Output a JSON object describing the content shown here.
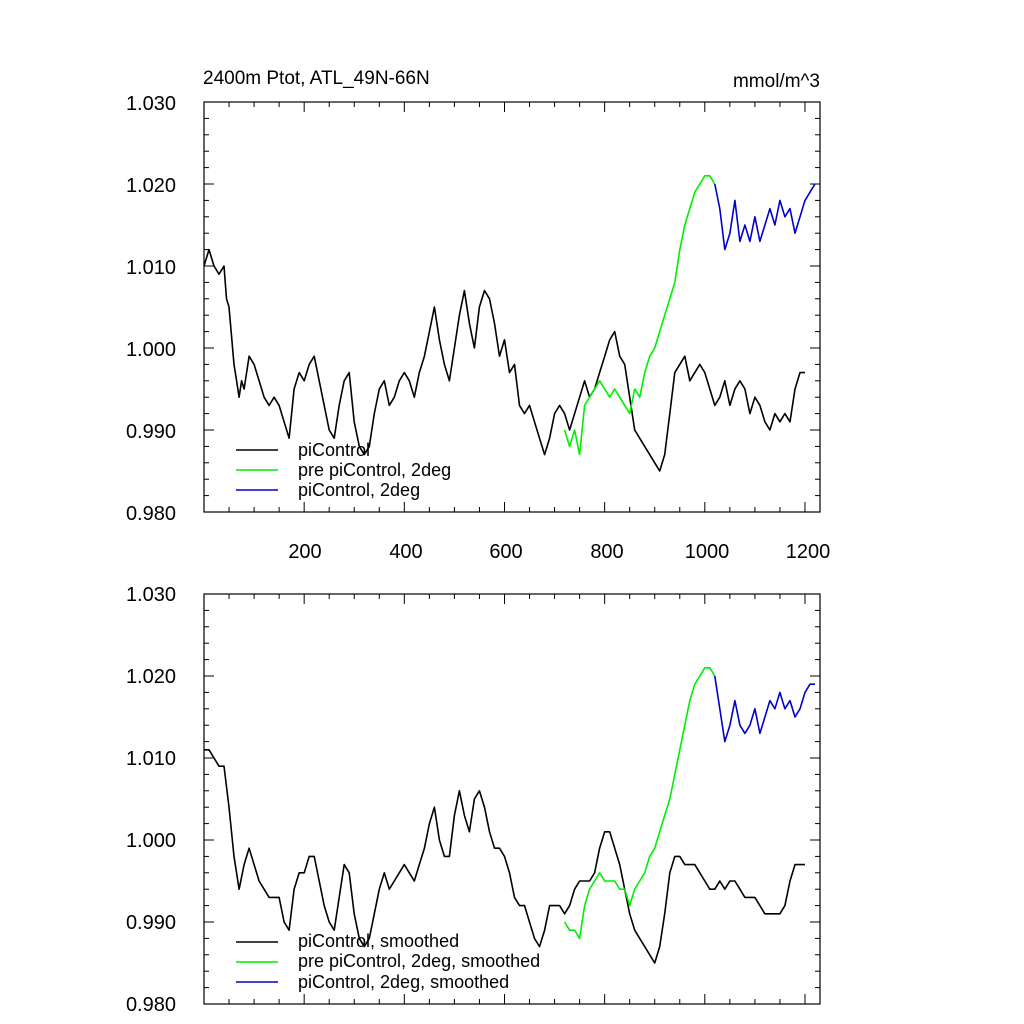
{
  "colors": {
    "piControl": "#000000",
    "pre_2deg": "#00ee00",
    "ctrl_2deg": "#0000cc"
  },
  "chart_data": [
    {
      "type": "line",
      "title": "2400m Ptot, ATL_49N-66N",
      "units": "mmol/m^3",
      "xlim": [
        0,
        1230
      ],
      "ylim": [
        0.98,
        1.03
      ],
      "xticks": [
        200,
        400,
        600,
        800,
        1000,
        1200
      ],
      "xtick_labels": [
        "200",
        "400",
        "600",
        "800",
        "1000",
        "1200"
      ],
      "yticks": [
        0.98,
        0.99,
        1.0,
        1.01,
        1.02,
        1.03
      ],
      "ytick_labels": [
        "0.980",
        "0.990",
        "1.000",
        "1.010",
        "1.020",
        "1.030"
      ],
      "legend_position": "bottom-left",
      "series": [
        {
          "name": "piControl",
          "color_key": "piControl",
          "x": [
            0,
            10,
            20,
            30,
            40,
            45,
            50,
            60,
            65,
            70,
            75,
            80,
            90,
            100,
            110,
            120,
            130,
            140,
            150,
            160,
            170,
            180,
            190,
            200,
            210,
            220,
            230,
            240,
            250,
            260,
            270,
            280,
            290,
            300,
            310,
            320,
            330,
            340,
            350,
            360,
            370,
            380,
            390,
            400,
            410,
            420,
            430,
            440,
            450,
            460,
            470,
            480,
            490,
            500,
            510,
            520,
            530,
            540,
            550,
            560,
            570,
            580,
            590,
            600,
            610,
            620,
            630,
            640,
            650,
            660,
            670,
            680,
            690,
            700,
            710,
            720,
            730,
            740,
            750,
            760,
            770,
            780,
            790,
            800,
            810,
            820,
            830,
            840,
            850,
            860,
            870,
            880,
            890,
            900,
            910,
            920,
            930,
            940,
            950,
            960,
            970,
            980,
            990,
            1000,
            1010,
            1020,
            1030,
            1040,
            1050,
            1060,
            1070,
            1080,
            1090,
            1100,
            1110,
            1120,
            1130,
            1140,
            1150,
            1160,
            1170,
            1180,
            1190,
            1200
          ],
          "y": [
            1.01,
            1.012,
            1.01,
            1.009,
            1.01,
            1.006,
            1.005,
            0.998,
            0.996,
            0.994,
            0.996,
            0.995,
            0.999,
            0.998,
            0.996,
            0.994,
            0.993,
            0.994,
            0.993,
            0.991,
            0.989,
            0.995,
            0.997,
            0.996,
            0.998,
            0.999,
            0.996,
            0.993,
            0.99,
            0.989,
            0.993,
            0.996,
            0.997,
            0.991,
            0.988,
            0.987,
            0.988,
            0.992,
            0.995,
            0.996,
            0.993,
            0.994,
            0.996,
            0.997,
            0.996,
            0.994,
            0.997,
            0.999,
            1.002,
            1.005,
            1.001,
            0.998,
            0.996,
            1.0,
            1.004,
            1.007,
            1.003,
            1.0,
            1.005,
            1.007,
            1.006,
            1.003,
            0.999,
            1.001,
            0.997,
            0.998,
            0.993,
            0.992,
            0.993,
            0.991,
            0.989,
            0.987,
            0.989,
            0.992,
            0.993,
            0.992,
            0.99,
            0.992,
            0.994,
            0.996,
            0.994,
            0.995,
            0.997,
            0.999,
            1.001,
            1.002,
            0.999,
            0.998,
            0.994,
            0.99,
            0.989,
            0.988,
            0.987,
            0.986,
            0.985,
            0.987,
            0.992,
            0.997,
            0.998,
            0.999,
            0.996,
            0.997,
            0.998,
            0.997,
            0.995,
            0.993,
            0.994,
            0.996,
            0.993,
            0.995,
            0.996,
            0.995,
            0.992,
            0.994,
            0.993,
            0.991,
            0.99,
            0.992,
            0.991,
            0.992,
            0.991,
            0.995,
            0.997,
            0.997
          ]
        },
        {
          "name": "pre piControl, 2deg",
          "color_key": "pre_2deg",
          "x": [
            720,
            730,
            740,
            750,
            760,
            770,
            780,
            790,
            800,
            810,
            820,
            830,
            840,
            850,
            860,
            870,
            880,
            890,
            900,
            910,
            920,
            930,
            940,
            950,
            960,
            970,
            980,
            990,
            1000,
            1010,
            1020
          ],
          "y": [
            0.99,
            0.988,
            0.99,
            0.987,
            0.993,
            0.994,
            0.995,
            0.996,
            0.995,
            0.994,
            0.995,
            0.994,
            0.993,
            0.992,
            0.995,
            0.994,
            0.997,
            0.999,
            1.0,
            1.002,
            1.004,
            1.006,
            1.008,
            1.012,
            1.015,
            1.017,
            1.019,
            1.02,
            1.021,
            1.021,
            1.02
          ]
        },
        {
          "name": "piControl, 2deg",
          "color_key": "ctrl_2deg",
          "x": [
            1020,
            1030,
            1040,
            1050,
            1060,
            1070,
            1080,
            1090,
            1100,
            1110,
            1120,
            1130,
            1140,
            1150,
            1160,
            1170,
            1180,
            1190,
            1200,
            1210,
            1220
          ],
          "y": [
            1.02,
            1.017,
            1.012,
            1.014,
            1.018,
            1.013,
            1.015,
            1.013,
            1.016,
            1.013,
            1.015,
            1.017,
            1.015,
            1.018,
            1.016,
            1.017,
            1.014,
            1.016,
            1.018,
            1.019,
            1.02
          ]
        }
      ]
    },
    {
      "type": "line",
      "title": "",
      "units": "",
      "xlim": [
        0,
        1230
      ],
      "ylim": [
        0.98,
        1.03
      ],
      "xticks": [
        200,
        400,
        600,
        800,
        1000,
        1200
      ],
      "xtick_labels": [],
      "yticks": [
        0.98,
        0.99,
        1.0,
        1.01,
        1.02,
        1.03
      ],
      "ytick_labels": [
        "0.980",
        "0.990",
        "1.000",
        "1.010",
        "1.020",
        "1.030"
      ],
      "legend_position": "bottom-left",
      "series": [
        {
          "name": "piControl, smoothed",
          "color_key": "piControl",
          "x": [
            0,
            10,
            20,
            30,
            40,
            50,
            60,
            70,
            80,
            90,
            100,
            110,
            120,
            130,
            140,
            150,
            160,
            170,
            180,
            190,
            200,
            210,
            220,
            230,
            240,
            250,
            260,
            270,
            280,
            290,
            300,
            310,
            320,
            330,
            340,
            350,
            360,
            370,
            380,
            390,
            400,
            410,
            420,
            430,
            440,
            450,
            460,
            470,
            480,
            490,
            500,
            510,
            520,
            530,
            540,
            550,
            560,
            570,
            580,
            590,
            600,
            610,
            620,
            630,
            640,
            650,
            660,
            670,
            680,
            690,
            700,
            710,
            720,
            730,
            740,
            750,
            760,
            770,
            780,
            790,
            800,
            810,
            820,
            830,
            840,
            850,
            860,
            870,
            880,
            890,
            900,
            910,
            920,
            930,
            940,
            950,
            960,
            970,
            980,
            990,
            1000,
            1010,
            1020,
            1030,
            1040,
            1050,
            1060,
            1070,
            1080,
            1090,
            1100,
            1110,
            1120,
            1130,
            1140,
            1150,
            1160,
            1170,
            1180,
            1190,
            1200
          ],
          "y": [
            1.011,
            1.011,
            1.01,
            1.009,
            1.009,
            1.004,
            0.998,
            0.994,
            0.997,
            0.999,
            0.997,
            0.995,
            0.994,
            0.993,
            0.993,
            0.993,
            0.99,
            0.989,
            0.994,
            0.996,
            0.996,
            0.998,
            0.998,
            0.995,
            0.992,
            0.99,
            0.989,
            0.993,
            0.997,
            0.996,
            0.991,
            0.988,
            0.987,
            0.988,
            0.991,
            0.994,
            0.996,
            0.994,
            0.995,
            0.996,
            0.997,
            0.996,
            0.995,
            0.997,
            0.999,
            1.002,
            1.004,
            1.0,
            0.998,
            0.998,
            1.003,
            1.006,
            1.003,
            1.001,
            1.005,
            1.006,
            1.004,
            1.001,
            0.999,
            0.999,
            0.998,
            0.996,
            0.993,
            0.992,
            0.992,
            0.99,
            0.988,
            0.987,
            0.989,
            0.992,
            0.992,
            0.992,
            0.991,
            0.992,
            0.994,
            0.995,
            0.995,
            0.995,
            0.996,
            0.999,
            1.001,
            1.001,
            0.999,
            0.997,
            0.994,
            0.991,
            0.989,
            0.988,
            0.987,
            0.986,
            0.985,
            0.987,
            0.991,
            0.996,
            0.998,
            0.998,
            0.997,
            0.997,
            0.997,
            0.996,
            0.995,
            0.994,
            0.994,
            0.995,
            0.994,
            0.995,
            0.995,
            0.994,
            0.993,
            0.993,
            0.993,
            0.992,
            0.991,
            0.991,
            0.991,
            0.991,
            0.992,
            0.995,
            0.997,
            0.997,
            0.997
          ]
        },
        {
          "name": "pre piControl, 2deg, smoothed",
          "color_key": "pre_2deg",
          "x": [
            720,
            730,
            740,
            750,
            760,
            770,
            780,
            790,
            800,
            810,
            820,
            830,
            840,
            850,
            860,
            870,
            880,
            890,
            900,
            910,
            920,
            930,
            940,
            950,
            960,
            970,
            980,
            990,
            1000,
            1010,
            1020
          ],
          "y": [
            0.99,
            0.989,
            0.989,
            0.988,
            0.992,
            0.994,
            0.995,
            0.996,
            0.995,
            0.995,
            0.995,
            0.994,
            0.994,
            0.992,
            0.994,
            0.995,
            0.996,
            0.998,
            0.999,
            1.001,
            1.003,
            1.005,
            1.008,
            1.011,
            1.014,
            1.017,
            1.019,
            1.02,
            1.021,
            1.021,
            1.02
          ]
        },
        {
          "name": "piControl, 2deg, smoothed",
          "color_key": "ctrl_2deg",
          "x": [
            1020,
            1030,
            1040,
            1050,
            1060,
            1070,
            1080,
            1090,
            1100,
            1110,
            1120,
            1130,
            1140,
            1150,
            1160,
            1170,
            1180,
            1190,
            1200,
            1210,
            1220
          ],
          "y": [
            1.02,
            1.016,
            1.012,
            1.014,
            1.017,
            1.014,
            1.013,
            1.014,
            1.016,
            1.013,
            1.015,
            1.017,
            1.016,
            1.018,
            1.016,
            1.017,
            1.015,
            1.016,
            1.018,
            1.019,
            1.019
          ]
        }
      ]
    }
  ]
}
